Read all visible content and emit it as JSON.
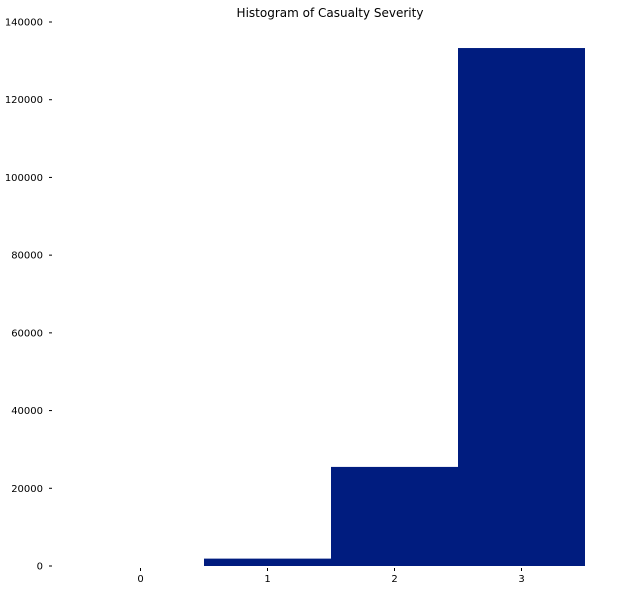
{
  "chart_data": {
    "type": "bar",
    "title": "Histogram of Casualty Severity",
    "xlabel": "",
    "ylabel": "",
    "categories": [
      "0",
      "1",
      "2",
      "3"
    ],
    "values": [
      0,
      1900,
      25500,
      133300
    ],
    "ylim": [
      0,
      140000
    ],
    "y_ticks": [
      0,
      20000,
      40000,
      60000,
      80000,
      100000,
      120000,
      140000
    ],
    "x_ticks": [
      0,
      1,
      2,
      3
    ],
    "grid": false,
    "legend": "none",
    "bar_color": "#001c7f"
  }
}
